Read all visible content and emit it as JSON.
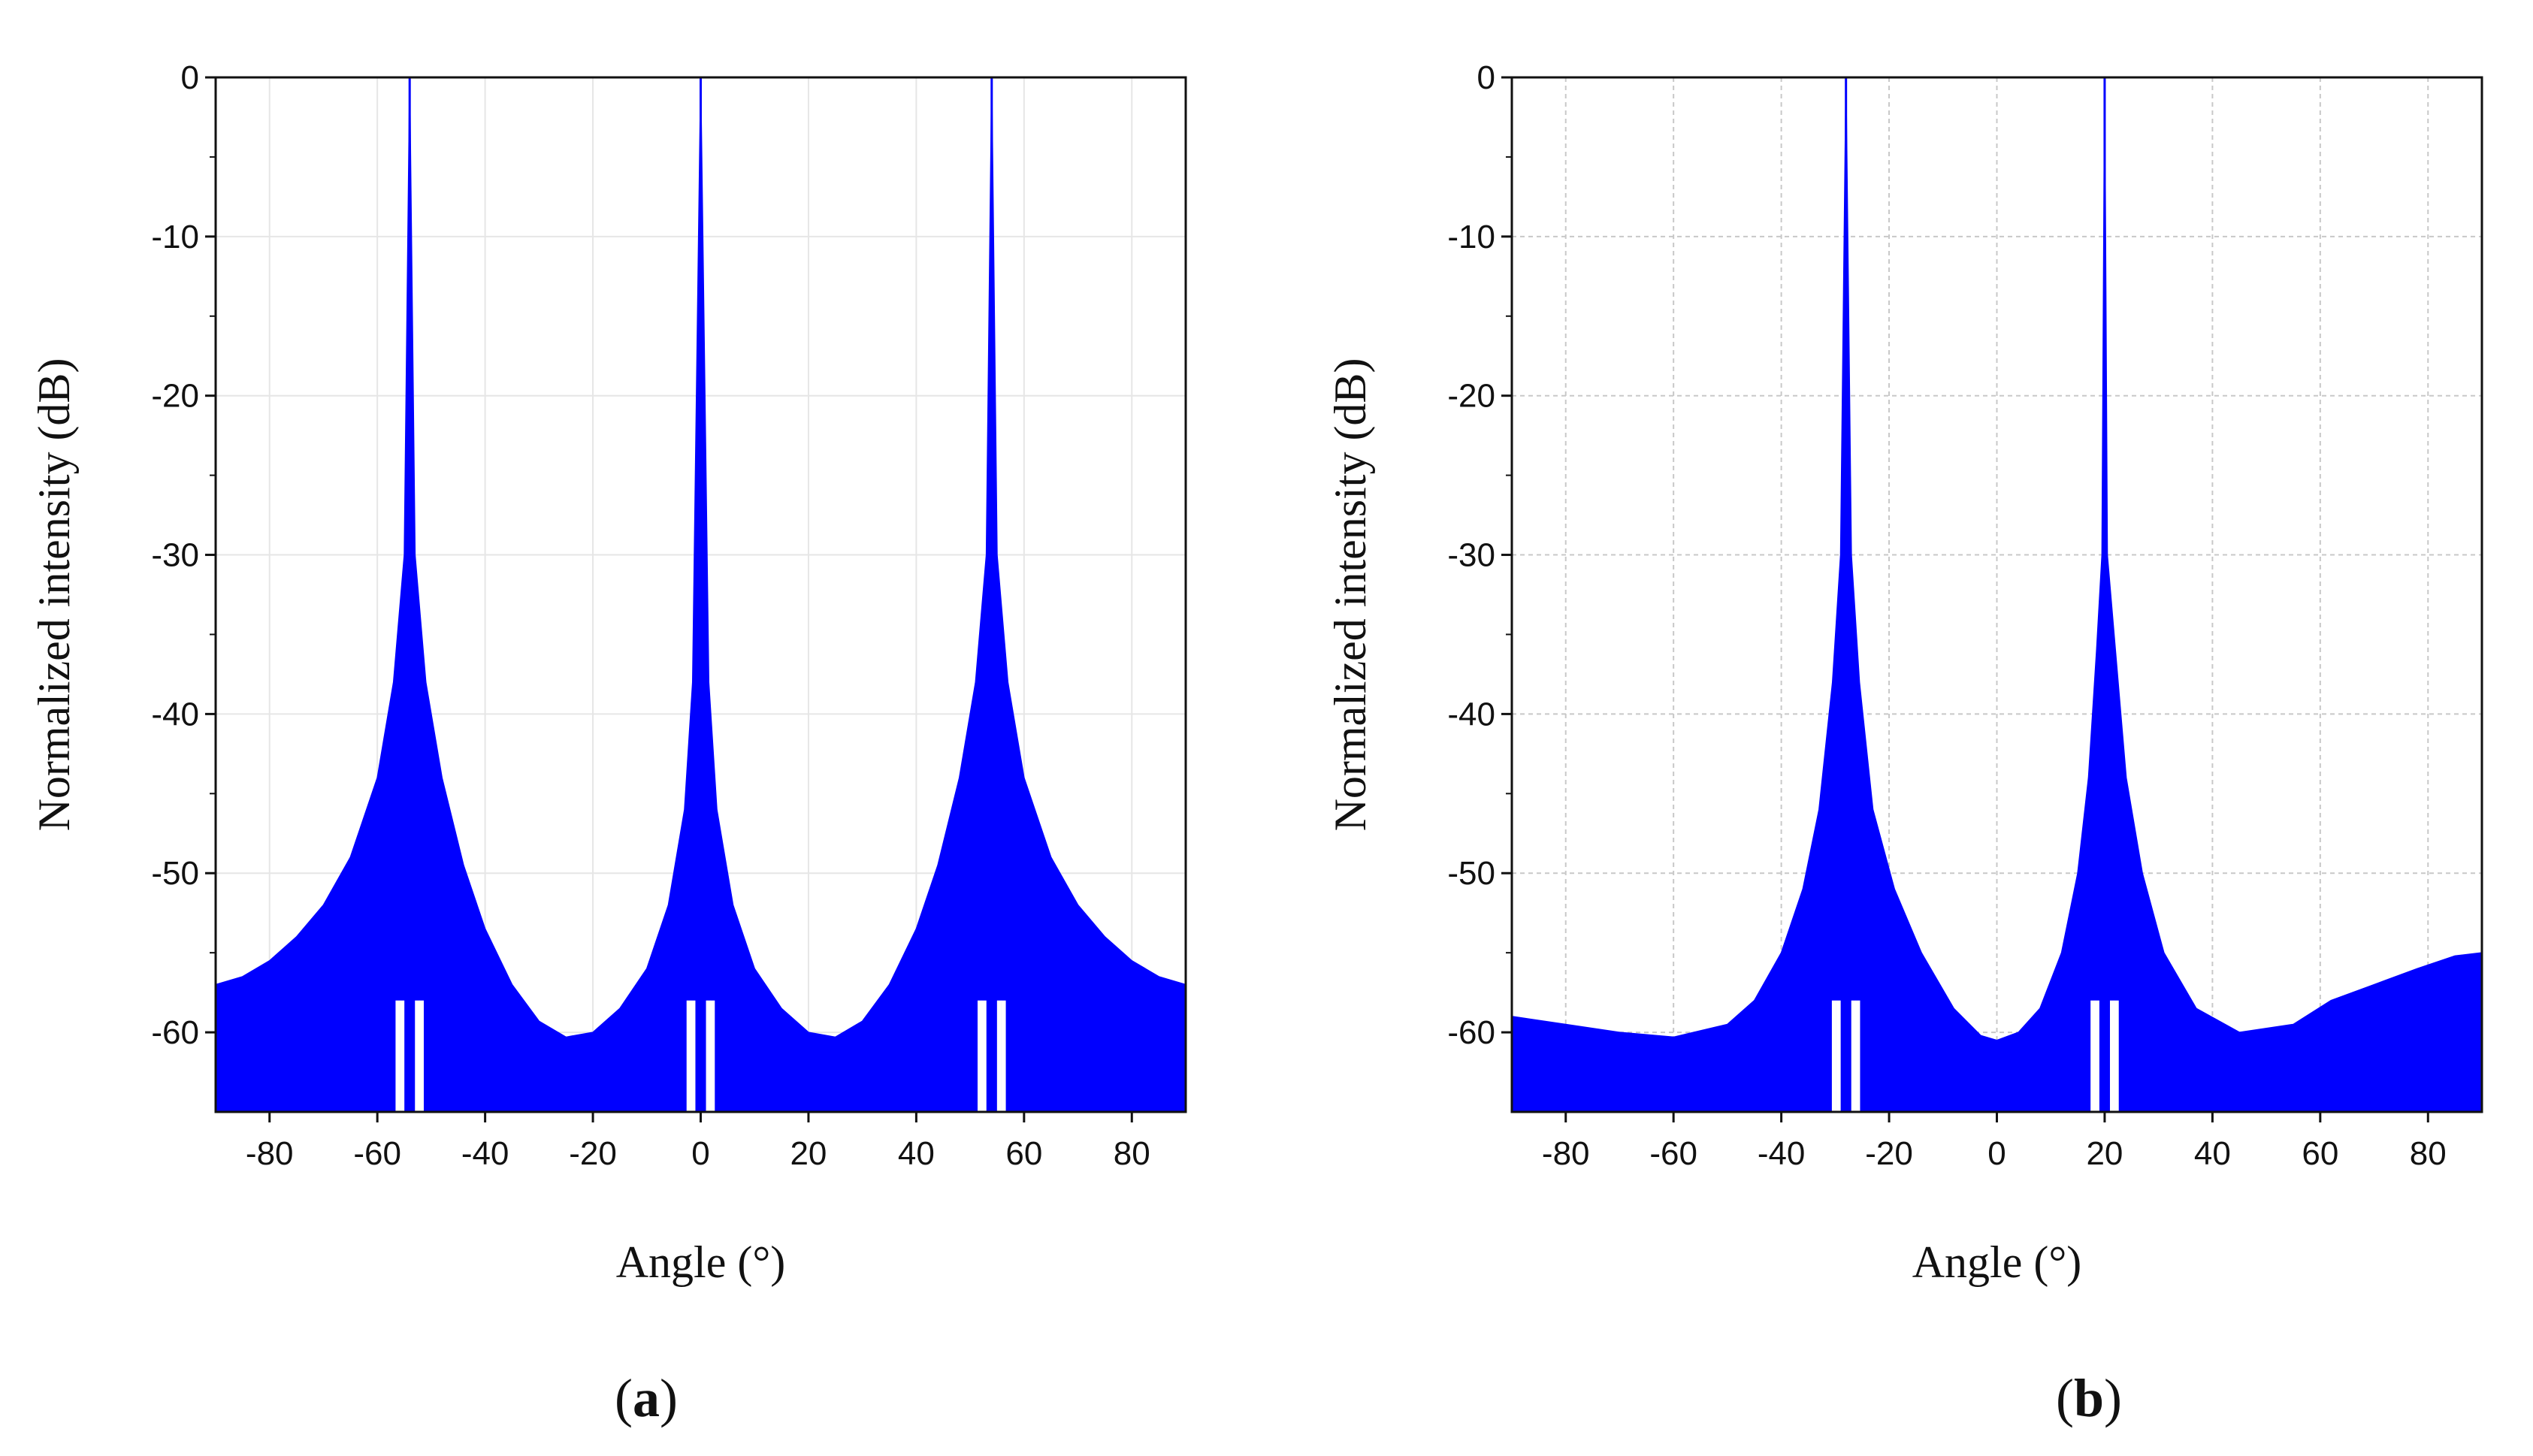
{
  "chart_data": [
    {
      "type": "line",
      "panel": "a",
      "caption_letter": "a",
      "xlabel": "Angle (°)",
      "ylabel": "Normalized intensity (dB)",
      "xlim": [
        -90,
        90
      ],
      "ylim": [
        -65,
        0
      ],
      "xticks": [
        -80,
        -60,
        -40,
        -20,
        0,
        20,
        40,
        60,
        80
      ],
      "yticks": [
        0,
        -10,
        -20,
        -30,
        -40,
        -50,
        -60
      ],
      "grid": true,
      "color": "#0000ff",
      "series": [
        {
          "name": "Normalized intensity",
          "peaks": [
            -54,
            0,
            54
          ],
          "envelope": [
            [
              -90,
              -57
            ],
            [
              -85,
              -56.5
            ],
            [
              -80,
              -55.5
            ],
            [
              -75,
              -54
            ],
            [
              -70,
              -52
            ],
            [
              -65,
              -49
            ],
            [
              -60,
              -44
            ],
            [
              -57,
              -38
            ],
            [
              -55,
              -30
            ],
            [
              -54,
              0
            ],
            [
              -53,
              -30
            ],
            [
              -51,
              -38
            ],
            [
              -48,
              -44
            ],
            [
              -44,
              -49.5
            ],
            [
              -40,
              -53.5
            ],
            [
              -35,
              -57
            ],
            [
              -30,
              -59.3
            ],
            [
              -25,
              -60.3
            ],
            [
              -20,
              -60
            ],
            [
              -15,
              -58.5
            ],
            [
              -10,
              -56
            ],
            [
              -6,
              -52
            ],
            [
              -3,
              -46
            ],
            [
              -1.5,
              -38
            ],
            [
              0,
              0
            ],
            [
              1.5,
              -38
            ],
            [
              3,
              -46
            ],
            [
              6,
              -52
            ],
            [
              10,
              -56
            ],
            [
              15,
              -58.5
            ],
            [
              20,
              -60
            ],
            [
              25,
              -60.3
            ],
            [
              30,
              -59.3
            ],
            [
              35,
              -57
            ],
            [
              40,
              -53.5
            ],
            [
              44,
              -49.5
            ],
            [
              48,
              -44
            ],
            [
              51,
              -38
            ],
            [
              53,
              -30
            ],
            [
              54,
              0
            ],
            [
              55,
              -30
            ],
            [
              57,
              -38
            ],
            [
              60,
              -44
            ],
            [
              65,
              -49
            ],
            [
              70,
              -52
            ],
            [
              75,
              -54
            ],
            [
              80,
              -55.5
            ],
            [
              85,
              -56.5
            ],
            [
              90,
              -57
            ]
          ]
        }
      ]
    },
    {
      "type": "line",
      "panel": "b",
      "caption_letter": "b",
      "xlabel": "Angle (°)",
      "ylabel": "Normalized intensity (dB)",
      "xlim": [
        -90,
        90
      ],
      "ylim": [
        -65,
        0
      ],
      "xticks": [
        -80,
        -60,
        -40,
        -20,
        0,
        20,
        40,
        60,
        80
      ],
      "yticks": [
        0,
        -10,
        -20,
        -30,
        -40,
        -50,
        -60
      ],
      "grid": true,
      "color": "#0000ff",
      "series": [
        {
          "name": "Normalized intensity",
          "peaks": [
            -28,
            20
          ],
          "envelope": [
            [
              -90,
              -59
            ],
            [
              -80,
              -59.5
            ],
            [
              -70,
              -60
            ],
            [
              -60,
              -60.3
            ],
            [
              -50,
              -59.5
            ],
            [
              -45,
              -58
            ],
            [
              -40,
              -55
            ],
            [
              -36,
              -51
            ],
            [
              -33,
              -46
            ],
            [
              -30.5,
              -38
            ],
            [
              -29,
              -30
            ],
            [
              -28,
              0
            ],
            [
              -27,
              -30
            ],
            [
              -25.5,
              -38
            ],
            [
              -23,
              -46
            ],
            [
              -19,
              -51
            ],
            [
              -14,
              -55
            ],
            [
              -8,
              -58.5
            ],
            [
              -3,
              -60.2
            ],
            [
              0,
              -60.5
            ],
            [
              4,
              -60
            ],
            [
              8,
              -58.5
            ],
            [
              12,
              -55
            ],
            [
              15,
              -50
            ],
            [
              17,
              -44
            ],
            [
              18.5,
              -36
            ],
            [
              19.5,
              -30
            ],
            [
              20,
              0
            ],
            [
              20.5,
              -30
            ],
            [
              22,
              -36
            ],
            [
              24,
              -44
            ],
            [
              27,
              -50
            ],
            [
              31,
              -55
            ],
            [
              37,
              -58.5
            ],
            [
              45,
              -60
            ],
            [
              55,
              -59.5
            ],
            [
              62,
              -58
            ],
            [
              70,
              -57
            ],
            [
              78,
              -56
            ],
            [
              85,
              -55.2
            ],
            [
              90,
              -55
            ]
          ]
        }
      ]
    }
  ]
}
